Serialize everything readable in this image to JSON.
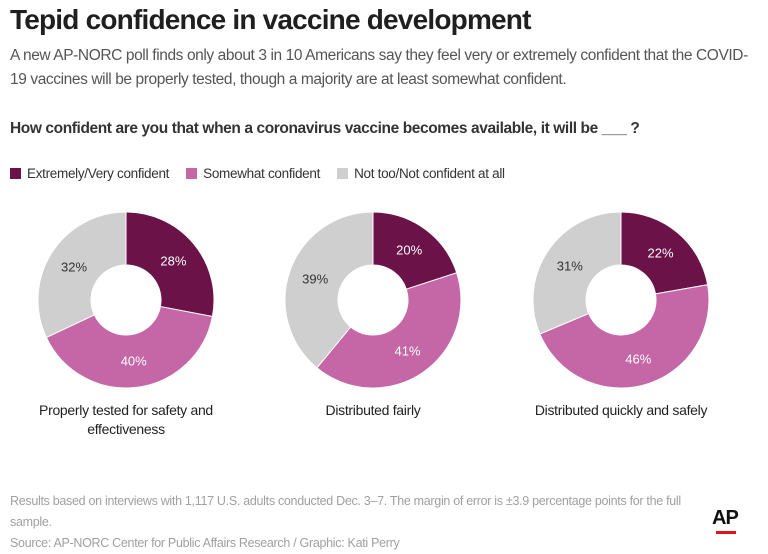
{
  "title": "Tepid confidence in vaccine development",
  "subtitle": "A new AP-NORC poll finds only about 3 in 10 Americans say they feel very or extremely confident that the COVID-19 vaccines will be properly tested, though a majority are at least somewhat confident.",
  "question": "How confident are you that when a coronavirus vaccine becomes available, it will be ___ ?",
  "legend": [
    {
      "label": "Extremely/Very confident",
      "color": "#6b1249"
    },
    {
      "label": "Somewhat confident",
      "color": "#c566a7"
    },
    {
      "label": "Not too/Not confident at all",
      "color": "#cfcfcf"
    }
  ],
  "chart_data": {
    "type": "pie",
    "variant": "donut",
    "series_names": [
      "Extremely/Very confident",
      "Somewhat confident",
      "Not too/Not confident at all"
    ],
    "colors": [
      "#6b1249",
      "#c566a7",
      "#cfcfcf"
    ],
    "charts": [
      {
        "caption": [
          "Properly tested for safety and",
          "effectiveness"
        ],
        "values": [
          28,
          40,
          32
        ],
        "labels": [
          "28%",
          "40%",
          "32%"
        ]
      },
      {
        "caption": [
          "Distributed fairly"
        ],
        "values": [
          20,
          41,
          39
        ],
        "labels": [
          "20%",
          "41%",
          "39%"
        ]
      },
      {
        "caption": [
          "Distributed quickly and safely"
        ],
        "values": [
          22,
          46,
          31
        ],
        "labels": [
          "22%",
          "46%",
          "31%"
        ]
      }
    ]
  },
  "footer": {
    "note": "Results based on interviews with 1,117 U.S. adults conducted Dec. 3–7. The margin of error is ±3.9 percentage points for the full sample.",
    "source": "Source: AP-NORC Center for Public Affairs Research / Graphic: Kati Perry"
  },
  "logo": "AP"
}
